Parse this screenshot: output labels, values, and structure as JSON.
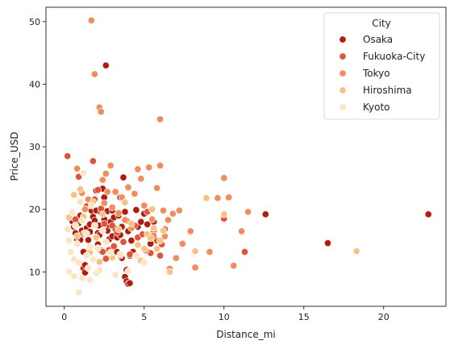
{
  "chart_data": {
    "type": "scatter",
    "title": "",
    "xlabel": "Distance_mi",
    "ylabel": "Price_USD",
    "xlim": [
      -1.15,
      23.9
    ],
    "ylim": [
      4.5,
      52.3
    ],
    "xticks": [
      0,
      5,
      10,
      15,
      20
    ],
    "yticks": [
      10,
      20,
      30,
      40,
      50
    ],
    "grid": false,
    "legend": {
      "title": "City",
      "placement": "top-right"
    },
    "series": [
      {
        "name": "Osaka",
        "color": "#b11c0f",
        "points": [
          [
            0.5,
            18.1
          ],
          [
            0.6,
            17.2
          ],
          [
            0.7,
            16.2
          ],
          [
            0.8,
            15.2
          ],
          [
            0.9,
            17.8
          ],
          [
            1.0,
            19.0
          ],
          [
            1.0,
            15.1
          ],
          [
            1.1,
            16.6
          ],
          [
            1.2,
            13.2
          ],
          [
            1.2,
            10.6
          ],
          [
            1.3,
            9.9
          ],
          [
            1.3,
            11.1
          ],
          [
            1.4,
            17.0
          ],
          [
            1.5,
            15.1
          ],
          [
            1.6,
            17.6
          ],
          [
            1.6,
            16.4
          ],
          [
            1.7,
            19.8
          ],
          [
            1.8,
            18.8
          ],
          [
            1.9,
            18.2
          ],
          [
            2.0,
            19.8
          ],
          [
            2.0,
            23.0
          ],
          [
            2.1,
            16.2
          ],
          [
            2.1,
            14.4
          ],
          [
            2.2,
            17.4
          ],
          [
            2.2,
            15.9
          ],
          [
            2.3,
            19.5
          ],
          [
            2.3,
            13.4
          ],
          [
            2.4,
            23.3
          ],
          [
            2.5,
            21.9
          ],
          [
            2.5,
            18.4
          ],
          [
            2.6,
            43.0
          ],
          [
            2.7,
            19.7
          ],
          [
            2.7,
            16.6
          ],
          [
            2.8,
            17.5
          ],
          [
            2.8,
            15.2
          ],
          [
            2.9,
            18.0
          ],
          [
            3.0,
            19.8
          ],
          [
            3.0,
            15.7
          ],
          [
            3.1,
            18.7
          ],
          [
            3.2,
            16.9
          ],
          [
            3.3,
            15.5
          ],
          [
            3.3,
            13.2
          ],
          [
            3.4,
            19.0
          ],
          [
            3.5,
            21.9
          ],
          [
            3.5,
            15.9
          ],
          [
            3.6,
            17.2
          ],
          [
            3.6,
            12.2
          ],
          [
            3.7,
            25.1
          ],
          [
            3.8,
            19.6
          ],
          [
            3.8,
            9.2
          ],
          [
            3.9,
            8.5
          ],
          [
            3.9,
            10.3
          ],
          [
            4.0,
            8.1
          ],
          [
            4.0,
            16.5
          ],
          [
            4.1,
            12.6
          ],
          [
            4.1,
            8.2
          ],
          [
            4.2,
            15.0
          ],
          [
            4.3,
            13.2
          ],
          [
            4.5,
            19.9
          ],
          [
            4.6,
            17.2
          ],
          [
            4.8,
            18.0
          ],
          [
            5.0,
            19.3
          ],
          [
            5.2,
            17.6
          ],
          [
            5.4,
            14.5
          ],
          [
            5.6,
            18.0
          ],
          [
            12.6,
            19.2
          ],
          [
            16.5,
            14.6
          ],
          [
            22.8,
            19.2
          ]
        ]
      },
      {
        "name": "Fukuoka-City",
        "color": "#df5338",
        "points": [
          [
            0.2,
            28.5
          ],
          [
            0.7,
            18.4
          ],
          [
            0.9,
            25.2
          ],
          [
            1.2,
            16.1
          ],
          [
            1.4,
            20.5
          ],
          [
            1.8,
            27.7
          ],
          [
            1.9,
            21.6
          ],
          [
            2.1,
            23.1
          ],
          [
            2.3,
            20.1
          ],
          [
            2.4,
            13.2
          ],
          [
            2.5,
            17.7
          ],
          [
            2.6,
            12.1
          ],
          [
            2.8,
            13.5
          ],
          [
            3.0,
            17.4
          ],
          [
            3.1,
            14.1
          ],
          [
            3.3,
            16.3
          ],
          [
            3.5,
            12.6
          ],
          [
            3.7,
            14.8
          ],
          [
            3.9,
            18.2
          ],
          [
            4.1,
            12.8
          ],
          [
            4.4,
            17.4
          ],
          [
            4.6,
            15.5
          ],
          [
            4.9,
            16.0
          ],
          [
            5.2,
            19.6
          ],
          [
            5.4,
            13.0
          ],
          [
            5.6,
            16.6
          ],
          [
            5.8,
            15.0
          ],
          [
            6.0,
            12.6
          ],
          [
            6.1,
            14.4
          ],
          [
            6.3,
            16.8
          ],
          [
            10.0,
            18.5
          ],
          [
            11.3,
            13.2
          ]
        ]
      },
      {
        "name": "Tokyo",
        "color": "#f08d5c",
        "points": [
          [
            0.8,
            26.5
          ],
          [
            1.1,
            22.6
          ],
          [
            1.3,
            20.0
          ],
          [
            1.5,
            21.6
          ],
          [
            1.7,
            50.2
          ],
          [
            1.9,
            41.6
          ],
          [
            2.2,
            36.3
          ],
          [
            2.3,
            35.6
          ],
          [
            2.4,
            24.7
          ],
          [
            2.5,
            21.0
          ],
          [
            2.6,
            25.7
          ],
          [
            2.7,
            22.8
          ],
          [
            2.9,
            27.0
          ],
          [
            3.0,
            20.3
          ],
          [
            3.2,
            22.8
          ],
          [
            3.4,
            19.4
          ],
          [
            3.6,
            21.9
          ],
          [
            3.8,
            18.3
          ],
          [
            4.0,
            23.5
          ],
          [
            4.2,
            17.0
          ],
          [
            4.4,
            22.5
          ],
          [
            4.6,
            26.4
          ],
          [
            4.8,
            24.9
          ],
          [
            5.0,
            20.6
          ],
          [
            5.1,
            13.4
          ],
          [
            5.3,
            26.7
          ],
          [
            5.5,
            18.4
          ],
          [
            5.6,
            15.8
          ],
          [
            5.8,
            23.4
          ],
          [
            6.0,
            34.4
          ],
          [
            6.0,
            27.0
          ],
          [
            6.2,
            19.8
          ],
          [
            6.3,
            15.7
          ],
          [
            6.5,
            18.3
          ],
          [
            6.6,
            10.5
          ],
          [
            6.8,
            19.3
          ],
          [
            7.0,
            12.2
          ],
          [
            7.2,
            19.8
          ],
          [
            7.4,
            14.5
          ],
          [
            7.9,
            16.5
          ],
          [
            8.2,
            10.7
          ],
          [
            9.1,
            13.2
          ],
          [
            9.6,
            21.8
          ],
          [
            10.0,
            25.0
          ],
          [
            10.3,
            21.9
          ],
          [
            10.6,
            11.0
          ],
          [
            11.1,
            16.5
          ],
          [
            11.5,
            19.6
          ]
        ]
      },
      {
        "name": "Hiroshima",
        "color": "#f9c284",
        "points": [
          [
            0.3,
            18.7
          ],
          [
            0.6,
            22.3
          ],
          [
            0.8,
            15.7
          ],
          [
            1.0,
            23.2
          ],
          [
            1.2,
            18.8
          ],
          [
            1.4,
            16.1
          ],
          [
            1.6,
            13.1
          ],
          [
            1.8,
            21.2
          ],
          [
            2.0,
            15.5
          ],
          [
            2.2,
            11.6
          ],
          [
            2.4,
            19.2
          ],
          [
            3.0,
            12.3
          ],
          [
            3.4,
            16.8
          ],
          [
            3.8,
            21.1
          ],
          [
            4.2,
            17.7
          ],
          [
            4.6,
            14.3
          ],
          [
            4.8,
            11.8
          ],
          [
            5.0,
            13.7
          ],
          [
            5.2,
            16.0
          ],
          [
            5.4,
            15.4
          ],
          [
            5.5,
            20.0
          ],
          [
            5.6,
            17.0
          ],
          [
            5.8,
            13.7
          ],
          [
            6.0,
            15.0
          ],
          [
            6.2,
            16.6
          ],
          [
            6.6,
            10.0
          ],
          [
            8.2,
            13.3
          ],
          [
            8.9,
            21.8
          ],
          [
            10.0,
            19.2
          ],
          [
            18.3,
            13.3
          ]
        ]
      },
      {
        "name": "Kyoto",
        "color": "#fde4c2",
        "points": [
          [
            0.2,
            16.8
          ],
          [
            0.3,
            15.0
          ],
          [
            0.3,
            10.0
          ],
          [
            0.4,
            13.2
          ],
          [
            0.5,
            19.5
          ],
          [
            0.6,
            12.0
          ],
          [
            0.6,
            9.3
          ],
          [
            0.7,
            17.4
          ],
          [
            0.8,
            14.5
          ],
          [
            0.9,
            6.7
          ],
          [
            0.9,
            11.5
          ],
          [
            1.0,
            21.2
          ],
          [
            1.1,
            18.2
          ],
          [
            1.1,
            9.0
          ],
          [
            1.2,
            25.8
          ],
          [
            1.3,
            16.2
          ],
          [
            1.4,
            12.6
          ],
          [
            1.5,
            10.6
          ],
          [
            1.6,
            14.0
          ],
          [
            1.6,
            8.7
          ],
          [
            1.7,
            20.6
          ],
          [
            1.8,
            12.0
          ],
          [
            1.9,
            17.4
          ],
          [
            2.0,
            9.8
          ],
          [
            2.1,
            13.8
          ],
          [
            2.2,
            10.3
          ],
          [
            2.4,
            16.6
          ],
          [
            2.6,
            14.8
          ],
          [
            2.9,
            13.1
          ],
          [
            3.2,
            9.5
          ],
          [
            3.5,
            12.8
          ],
          [
            4.0,
            10.1
          ],
          [
            4.5,
            12.6
          ],
          [
            5.0,
            11.5
          ]
        ]
      }
    ]
  }
}
